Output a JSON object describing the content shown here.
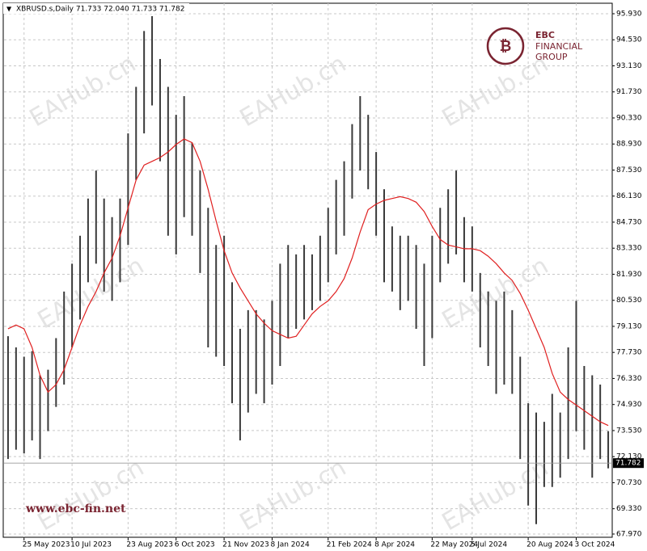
{
  "chart_data": {
    "type": "ohlc",
    "header": "XBRUSD.s,Daily  71.733 72.040 71.733 71.782",
    "brand": {
      "name": "EBC",
      "line1": "FINANCIAL",
      "line2": "GROUP",
      "website": "www.ebc-fin.net",
      "watermark": "EAHub.cn"
    },
    "categories": [
      null,
      null,
      "25 May 2023",
      null,
      null,
      null,
      null,
      null,
      "10 Jul 2023",
      null,
      null,
      null,
      null,
      null,
      null,
      "23 Aug 2023",
      null,
      null,
      null,
      null,
      null,
      "6 Oct 2023",
      null,
      null,
      null,
      null,
      null,
      "21 Nov 2023",
      null,
      null,
      null,
      null,
      null,
      "8 Jan 2024",
      null,
      null,
      null,
      null,
      null,
      null,
      "21 Feb 2024",
      null,
      null,
      null,
      null,
      null,
      "8 Apr 2024",
      null,
      null,
      null,
      null,
      null,
      null,
      "22 May 2024",
      null,
      null,
      null,
      null,
      "5 Jul 2024",
      null,
      null,
      null,
      null,
      null,
      null,
      "20 Aug 2024",
      null,
      null,
      null,
      null,
      null,
      "3 Oct 2024",
      null,
      null,
      null,
      null
    ],
    "high": [
      78.6,
      78.0,
      77.5,
      77.8,
      76.5,
      76.8,
      78.5,
      81.0,
      82.5,
      84.0,
      86.0,
      87.5,
      86.0,
      85.0,
      86.0,
      89.5,
      92.0,
      95.0,
      95.8,
      93.5,
      92.0,
      90.5,
      91.5,
      89.0,
      87.5,
      85.5,
      83.5,
      84.0,
      81.5,
      79.0,
      80.0,
      80.0,
      79.5,
      80.5,
      82.5,
      83.5,
      83.0,
      83.5,
      83.0,
      84.0,
      85.5,
      87.0,
      88.0,
      90.0,
      91.5,
      90.5,
      88.5,
      86.5,
      84.5,
      84.0,
      84.0,
      83.5,
      82.5,
      84.0,
      85.5,
      86.5,
      87.5,
      85.0,
      84.5,
      82.0,
      81.0,
      80.5,
      81.0,
      80.0,
      77.5,
      75.0,
      74.5,
      74.0,
      75.5,
      74.5,
      78.0,
      80.5,
      77.0,
      76.5,
      76.0,
      73.5
    ],
    "low": [
      72.0,
      72.5,
      72.3,
      73.0,
      72.0,
      73.5,
      74.8,
      76.0,
      78.0,
      79.5,
      81.5,
      82.5,
      81.0,
      80.5,
      81.5,
      83.5,
      87.0,
      89.5,
      91.0,
      88.0,
      84.0,
      83.0,
      85.0,
      84.0,
      82.0,
      78.0,
      77.5,
      77.0,
      75.0,
      73.0,
      74.5,
      75.5,
      75.0,
      76.0,
      77.0,
      78.5,
      79.0,
      79.5,
      80.0,
      80.5,
      81.5,
      83.0,
      84.0,
      86.0,
      87.5,
      86.5,
      84.0,
      81.5,
      81.0,
      80.0,
      80.5,
      79.0,
      77.0,
      78.5,
      81.5,
      82.5,
      83.0,
      81.5,
      81.0,
      78.0,
      77.0,
      75.5,
      76.0,
      75.5,
      72.0,
      69.5,
      68.5,
      70.5,
      70.5,
      71.0,
      72.0,
      73.5,
      72.5,
      71.0,
      72.0,
      71.5
    ],
    "bar_color": "#3a3a3a",
    "ma": {
      "color": "#e02020",
      "values": [
        79.0,
        79.2,
        79.0,
        78.0,
        76.5,
        75.6,
        76.0,
        76.8,
        78.0,
        79.2,
        80.2,
        81.0,
        82.0,
        82.8,
        84.0,
        85.5,
        87.0,
        87.8,
        88.0,
        88.2,
        88.5,
        88.9,
        89.2,
        89.0,
        88.0,
        86.5,
        84.8,
        83.2,
        82.0,
        81.2,
        80.5,
        79.8,
        79.3,
        78.9,
        78.7,
        78.5,
        78.6,
        79.2,
        79.8,
        80.2,
        80.5,
        81.0,
        81.7,
        82.8,
        84.2,
        85.4,
        85.7,
        85.9,
        86.0,
        86.1,
        86.0,
        85.8,
        85.3,
        84.5,
        83.8,
        83.5,
        83.4,
        83.3,
        83.3,
        83.2,
        82.9,
        82.5,
        82.0,
        81.6,
        80.9,
        80.0,
        79.0,
        78.0,
        76.6,
        75.6,
        75.2,
        74.9,
        74.6,
        74.3,
        74.0,
        73.8
      ]
    },
    "last_price": 71.782,
    "ylim": [
      67.97,
      95.93
    ],
    "yticks": [
      {
        "value": 95.93,
        "label": "95.930"
      },
      {
        "value": 94.53,
        "label": "94.530"
      },
      {
        "value": 93.13,
        "label": "93.130"
      },
      {
        "value": 91.73,
        "label": "91.730"
      },
      {
        "value": 90.33,
        "label": "90.330"
      },
      {
        "value": 88.93,
        "label": "88.930"
      },
      {
        "value": 87.53,
        "label": "87.530"
      },
      {
        "value": 86.13,
        "label": "86.130"
      },
      {
        "value": 84.73,
        "label": "84.730"
      },
      {
        "value": 83.33,
        "label": "83.330"
      },
      {
        "value": 81.93,
        "label": "81.930"
      },
      {
        "value": 80.53,
        "label": "80.530"
      },
      {
        "value": 79.13,
        "label": "79.130"
      },
      {
        "value": 77.73,
        "label": "77.730"
      },
      {
        "value": 76.33,
        "label": "76.330"
      },
      {
        "value": 74.93,
        "label": "74.930"
      },
      {
        "value": 73.53,
        "label": "73.530"
      },
      {
        "value": 72.13,
        "label": "72.130"
      },
      {
        "value": 70.73,
        "label": "70.730"
      },
      {
        "value": 69.33,
        "label": "69.330"
      },
      {
        "value": 67.97,
        "label": "67.970"
      }
    ],
    "grid": true
  }
}
